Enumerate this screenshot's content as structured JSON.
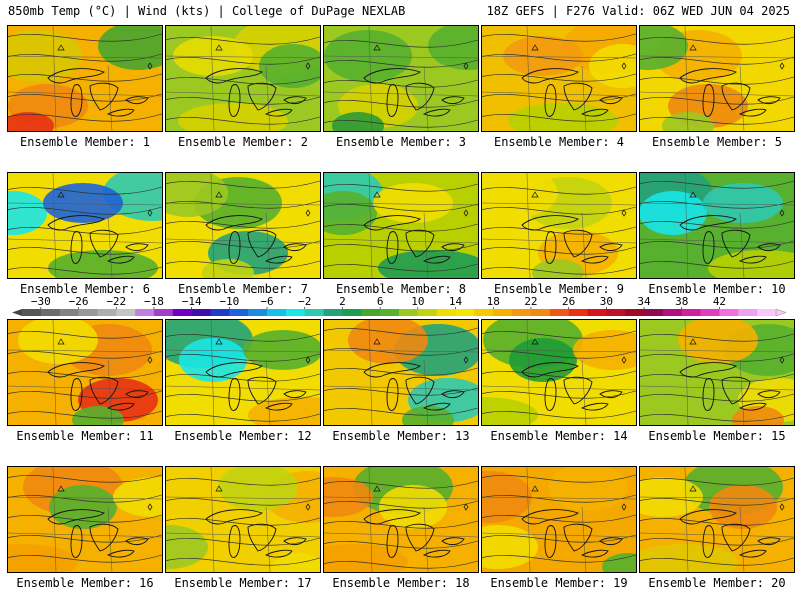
{
  "header": {
    "left": "850mb Temp (°C) | Wind (kts) | College of DuPage NEXLAB",
    "right": "18Z GEFS | F276 Valid: 06Z WED JUN 04 2025"
  },
  "member_label_prefix": "Ensemble Member: ",
  "members": [
    {
      "number": 1,
      "dominant_color": "#f5b000",
      "patches": [
        {
          "color": "#d9c800"
        },
        {
          "color": "#f08a10"
        },
        {
          "color": "#e83214"
        },
        {
          "color": "#47a630"
        }
      ]
    },
    {
      "number": 2,
      "dominant_color": "#9cc822",
      "patches": [
        {
          "color": "#d6d000"
        },
        {
          "color": "#57b02e"
        },
        {
          "color": "#e8dc00"
        },
        {
          "color": "#d6d000"
        }
      ]
    },
    {
      "number": 3,
      "dominant_color": "#9cc822",
      "patches": [
        {
          "color": "#57b02e"
        },
        {
          "color": "#d6d000"
        },
        {
          "color": "#2d9a36"
        },
        {
          "color": "#57b02e"
        }
      ]
    },
    {
      "number": 4,
      "dominant_color": "#f0c000",
      "patches": [
        {
          "color": "#f5a800"
        },
        {
          "color": "#f3dd00"
        },
        {
          "color": "#f29a10"
        },
        {
          "color": "#b8d000"
        }
      ]
    },
    {
      "number": 5,
      "dominant_color": "#f2d800",
      "patches": [
        {
          "color": "#f5b000"
        },
        {
          "color": "#f08a10"
        },
        {
          "color": "#9cc822"
        },
        {
          "color": "#57b02e"
        }
      ]
    },
    {
      "number": 6,
      "dominant_color": "#f2dd00",
      "patches": [
        {
          "color": "#2fc9b0"
        },
        {
          "color": "#19e6e6"
        },
        {
          "color": "#1e64d8"
        },
        {
          "color": "#57b02e"
        }
      ]
    },
    {
      "number": 7,
      "dominant_color": "#f2dd00",
      "patches": [
        {
          "color": "#57b02e"
        },
        {
          "color": "#23a37a"
        },
        {
          "color": "#c2d310"
        },
        {
          "color": "#9cc822"
        }
      ]
    },
    {
      "number": 8,
      "dominant_color": "#b8d000",
      "patches": [
        {
          "color": "#2fc9b0"
        },
        {
          "color": "#57b02e"
        },
        {
          "color": "#f2dd00"
        },
        {
          "color": "#1e9c52"
        }
      ]
    },
    {
      "number": 9,
      "dominant_color": "#f2dd00",
      "patches": [
        {
          "color": "#c2d310"
        },
        {
          "color": "#f5b000"
        },
        {
          "color": "#9cc822"
        },
        {
          "color": "#f2dd00"
        }
      ]
    },
    {
      "number": 10,
      "dominant_color": "#57b02e",
      "patches": [
        {
          "color": "#23a37a"
        },
        {
          "color": "#19e6e6"
        },
        {
          "color": "#2fc9b0"
        },
        {
          "color": "#b8d000"
        }
      ]
    },
    {
      "number": 11,
      "dominant_color": "#f5b000",
      "patches": [
        {
          "color": "#f08a10"
        },
        {
          "color": "#e83214"
        },
        {
          "color": "#57b02e"
        },
        {
          "color": "#f2dd00"
        }
      ]
    },
    {
      "number": 12,
      "dominant_color": "#f2dd00",
      "patches": [
        {
          "color": "#23a37a"
        },
        {
          "color": "#19e6e6"
        },
        {
          "color": "#57b02e"
        },
        {
          "color": "#f5b000"
        }
      ]
    },
    {
      "number": 13,
      "dominant_color": "#f2c800",
      "patches": [
        {
          "color": "#23a37a"
        },
        {
          "color": "#2fc9b0"
        },
        {
          "color": "#57b02e"
        },
        {
          "color": "#f08a10"
        }
      ]
    },
    {
      "number": 14,
      "dominant_color": "#f2dd00",
      "patches": [
        {
          "color": "#57b02e"
        },
        {
          "color": "#1e9c36"
        },
        {
          "color": "#f5b000"
        },
        {
          "color": "#b8d000"
        }
      ]
    },
    {
      "number": 15,
      "dominant_color": "#9cc822",
      "patches": [
        {
          "color": "#57b02e"
        },
        {
          "color": "#f2dd00"
        },
        {
          "color": "#f08a10"
        },
        {
          "color": "#f5b000"
        }
      ]
    },
    {
      "number": 16,
      "dominant_color": "#f5b000",
      "patches": [
        {
          "color": "#f08a10"
        },
        {
          "color": "#57b02e"
        },
        {
          "color": "#f2dd00"
        },
        {
          "color": "#f5a000"
        }
      ]
    },
    {
      "number": 17,
      "dominant_color": "#f2d000",
      "patches": [
        {
          "color": "#f5b000"
        },
        {
          "color": "#9cc822"
        },
        {
          "color": "#f2dd00"
        },
        {
          "color": "#c2d310"
        }
      ]
    },
    {
      "number": 18,
      "dominant_color": "#f5b000",
      "patches": [
        {
          "color": "#57b02e"
        },
        {
          "color": "#f2dd00"
        },
        {
          "color": "#f08a10"
        },
        {
          "color": "#f5a000"
        }
      ]
    },
    {
      "number": 19,
      "dominant_color": "#f5a800",
      "patches": [
        {
          "color": "#f08a10"
        },
        {
          "color": "#f2dd00"
        },
        {
          "color": "#57b02e"
        },
        {
          "color": "#f5b000"
        }
      ]
    },
    {
      "number": 20,
      "dominant_color": "#f5b000",
      "patches": [
        {
          "color": "#57b02e"
        },
        {
          "color": "#f08a10"
        },
        {
          "color": "#f2dd00"
        },
        {
          "color": "#e0c800"
        }
      ]
    }
  ],
  "colorbar": {
    "labels": [
      "−30",
      "−26",
      "−22",
      "−18",
      "−14",
      "−10",
      "−6",
      "−2",
      "2",
      "6",
      "10",
      "14",
      "18",
      "22",
      "26",
      "30",
      "34",
      "38",
      "42"
    ],
    "colors": [
      "#565656",
      "#6c6c6c",
      "#828282",
      "#989898",
      "#aeaeae",
      "#c4c4c4",
      "#c080e0",
      "#a040c8",
      "#7000c0",
      "#4010a8",
      "#1e3cc8",
      "#1e64d8",
      "#208ce0",
      "#19c0e8",
      "#19e6e6",
      "#2fc9b0",
      "#23a37a",
      "#1e9c52",
      "#47a630",
      "#57b02e",
      "#9cc822",
      "#c2d310",
      "#f2dd00",
      "#f3e600",
      "#f5c800",
      "#f5b000",
      "#f29a10",
      "#f08a10",
      "#ec5a14",
      "#e83214",
      "#d8141e",
      "#c01028",
      "#a00a28",
      "#900c50",
      "#b01080",
      "#d020a0",
      "#e040c0",
      "#f070e0",
      "#f0a0f0",
      "#f8c8f8"
    ]
  }
}
